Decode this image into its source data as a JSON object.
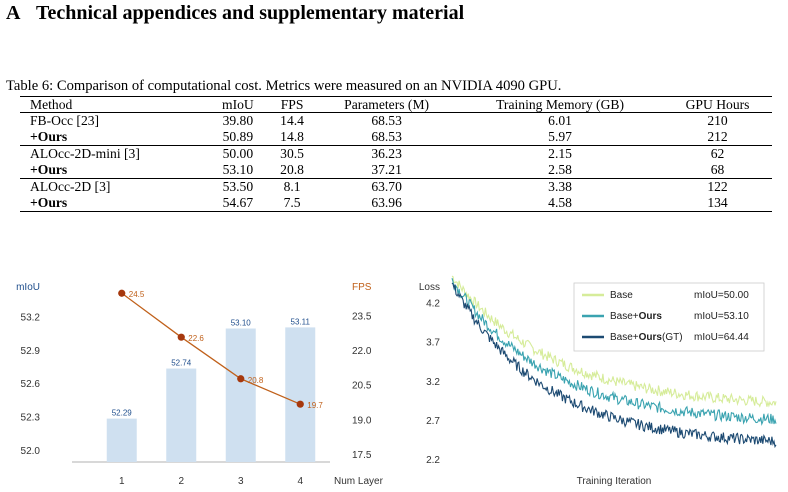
{
  "section": {
    "number": "A",
    "title": "Technical appendices and supplementary material"
  },
  "table": {
    "caption": "Table 6: Comparison of computational cost. Metrics were measured on an NVIDIA 4090 GPU.",
    "headers": [
      "Method",
      "mIoU",
      "FPS",
      "Parameters (M)",
      "Training Memory (GB)",
      "GPU Hours"
    ],
    "rows": [
      {
        "method": "FB-Occ [23]",
        "bold_prefix": "",
        "miou": "39.80",
        "fps": "14.4",
        "params": "68.53",
        "memory": "6.01",
        "gpu_hours": "210"
      },
      {
        "method": "",
        "bold_prefix": "+Ours",
        "miou": "50.89",
        "fps": "14.8",
        "params": "68.53",
        "memory": "5.97",
        "gpu_hours": "212"
      },
      {
        "method": "ALOcc-2D-mini [3]",
        "bold_prefix": "",
        "miou": "50.00",
        "fps": "30.5",
        "params": "36.23",
        "memory": "2.15",
        "gpu_hours": "62"
      },
      {
        "method": "",
        "bold_prefix": "+Ours",
        "miou": "53.10",
        "fps": "20.8",
        "params": "37.21",
        "memory": "2.58",
        "gpu_hours": "68"
      },
      {
        "method": "ALOcc-2D [3]",
        "bold_prefix": "",
        "miou": "53.50",
        "fps": "8.1",
        "params": "63.70",
        "memory": "3.38",
        "gpu_hours": "122"
      },
      {
        "method": "",
        "bold_prefix": "+Ours",
        "miou": "54.67",
        "fps": "7.5",
        "params": "63.96",
        "memory": "4.58",
        "gpu_hours": "134"
      }
    ]
  },
  "chart_data": [
    {
      "type": "bar",
      "title": "",
      "xlabel": "Num Layer",
      "ylabel": "mIoU",
      "y2label": "FPS",
      "categories": [
        "1",
        "2",
        "3",
        "4"
      ],
      "ylim": [
        51.9,
        53.5
      ],
      "y_ticks": [
        "52.0",
        "52.3",
        "52.6",
        "52.9",
        "53.2"
      ],
      "y2lim": [
        17.2,
        24.9
      ],
      "y2_ticks": [
        "17.5",
        "19.0",
        "20.5",
        "22.0",
        "23.5"
      ],
      "series": [
        {
          "axis": "left",
          "kind": "bar",
          "values": [
            52.29,
            52.74,
            53.1,
            53.11
          ],
          "labels": [
            "52.29",
            "52.74",
            "53.10",
            "53.11"
          ]
        },
        {
          "axis": "right",
          "kind": "line",
          "values": [
            24.5,
            22.6,
            20.8,
            19.7
          ],
          "labels": [
            "24.5",
            "22.6",
            "20.8",
            "19.7"
          ]
        }
      ],
      "colors": {
        "bar": "#cfe0f0",
        "line": "#c0601a",
        "left_axis": "#1f4e8c",
        "right_axis": "#c0601a"
      },
      "grid": false
    },
    {
      "type": "line",
      "title": "",
      "xlabel": "Training Iteration",
      "ylabel": "Loss",
      "ylim": [
        2.05,
        4.55
      ],
      "y_ticks": [
        "2.2",
        "2.7",
        "3.2",
        "3.7",
        "4.2"
      ],
      "legend_position": "top-right",
      "series": [
        {
          "name_plain": "Base",
          "name_bold": "",
          "name_suffix": "",
          "miou_label": "mIoU=50.00",
          "color": "#d6ec9a",
          "start": 4.55,
          "end": 2.87,
          "decay": 3.2,
          "noise": 0.07
        },
        {
          "name_plain": "Base+",
          "name_bold": "Ours",
          "name_suffix": "",
          "miou_label": "mIoU=53.10",
          "color": "#3aa3b0",
          "start": 4.5,
          "end": 2.66,
          "decay": 3.4,
          "noise": 0.07
        },
        {
          "name_plain": "Base+",
          "name_bold": "Ours",
          "name_suffix": "(GT)",
          "miou_label": "mIoU=64.44",
          "color": "#1c4a72",
          "start": 4.45,
          "end": 2.38,
          "decay": 3.5,
          "noise": 0.07
        }
      ]
    }
  ]
}
